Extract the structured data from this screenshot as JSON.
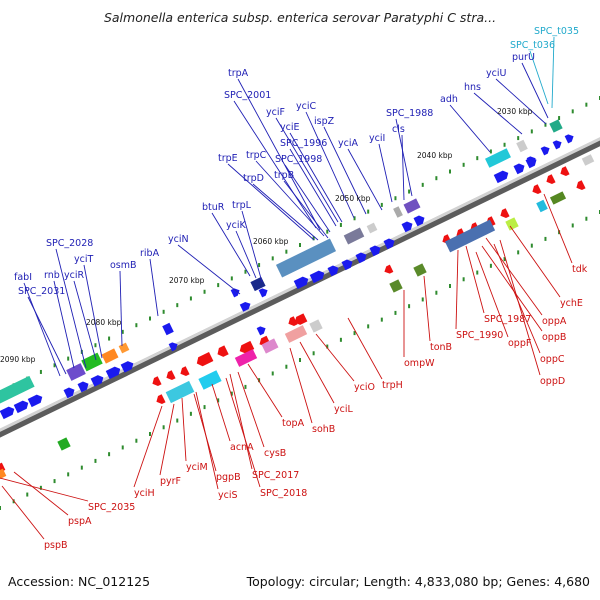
{
  "title": "Salmonella enterica subsp. enterica serovar Paratyphi C stra...",
  "footer": {
    "accession": "Accession: NC_012125",
    "summary": "Topology: circular; Length: 4,833,080 bp; Genes: 4,680"
  },
  "colors": {
    "forward_label": "#1f1fb4",
    "reverse_label": "#cc1111",
    "trna_label": "#22aacc",
    "forward_gene": "#1a1aee",
    "reverse_gene": "#ee1111",
    "backbone": "#8a8a8a",
    "ticks": "#2e8b2e"
  },
  "kbp_ticks": [
    {
      "label": "2030 kbp"
    },
    {
      "label": "2040 kbp"
    },
    {
      "label": "2050 kbp"
    },
    {
      "label": "2060 kbp"
    },
    {
      "label": "2070 kbp"
    },
    {
      "label": "2080 kbp"
    },
    {
      "label": "2090 kbp"
    }
  ],
  "forward_labels": [
    "trpA",
    "SPC_2001",
    "yciF",
    "yciC",
    "ispZ",
    "yciE",
    "SPC_1996",
    "yciA",
    "trpC",
    "SPC_1998",
    "trpE",
    "trpD",
    "trpB",
    "yciI",
    "cls",
    "SPC_1988",
    "adh",
    "hns",
    "yciU",
    "purU",
    "btuR",
    "yciK",
    "trpL",
    "yciN",
    "ribA",
    "osmB",
    "SPC_2028",
    "yciT",
    "rnb",
    "yciR",
    "fabI",
    "SPC_2031"
  ],
  "trna_labels": [
    "SPC_t035",
    "SPC_t036"
  ],
  "reverse_labels": [
    "tdk",
    "ychE",
    "oppA",
    "SPC_1987",
    "oppB",
    "SPC_1990",
    "oppF",
    "oppC",
    "oppD",
    "tonB",
    "ompW",
    "trpH",
    "yciO",
    "yciL",
    "sohB",
    "topA",
    "cysB",
    "acnA",
    "SPC_2017",
    "SPC_2018",
    "yciM",
    "pgpB",
    "yciS",
    "pyrF",
    "yciH",
    "SPC_2035",
    "pspA",
    "pspB"
  ]
}
